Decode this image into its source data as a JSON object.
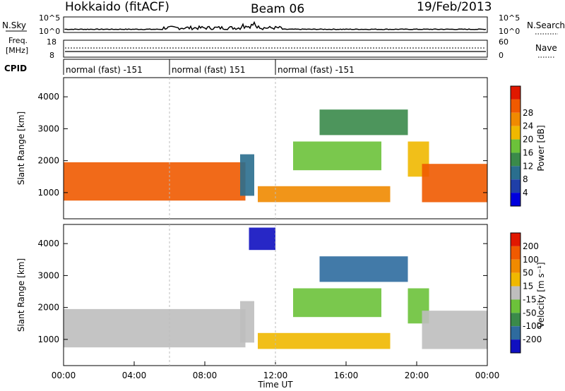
{
  "header": {
    "station": "Hokkaido (fitACF)",
    "beam": "Beam 06",
    "date": "19/Feb/2013"
  },
  "nsky_panel": {
    "label": "N.Sky",
    "right_label": "N.Search",
    "left_ticks": [
      "10^5",
      "10^0"
    ],
    "right_ticks": [
      "10^5",
      "10^0"
    ]
  },
  "freq_panel": {
    "label_line1": "Freq.",
    "label_line2": "[MHz]",
    "left_ticks": [
      "18",
      "8"
    ],
    "right_ticks": [
      "60",
      "0"
    ],
    "right_label": "Nave"
  },
  "cpid_panel": {
    "label": "CPID",
    "segments": [
      {
        "text": "normal (fast) -151",
        "start_hour": 0,
        "end_hour": 6
      },
      {
        "text": "normal (fast) 151",
        "start_hour": 6,
        "end_hour": 12
      },
      {
        "text": "normal (fast) -151",
        "start_hour": 12,
        "end_hour": 24
      }
    ]
  },
  "colors": {
    "power_scale": [
      "#0000dd",
      "#1f3fa8",
      "#2a6e8e",
      "#3a8a4a",
      "#6cc23a",
      "#f0b800",
      "#f08a00",
      "#f05a00",
      "#e01800"
    ],
    "velocity_scale": [
      "#1010c0",
      "#2e6b9e",
      "#3a8a4a",
      "#6cc23a",
      "#bebebe",
      "#f0b800",
      "#f08a00",
      "#f05a00",
      "#e01800"
    ]
  },
  "chart_data": [
    {
      "type": "heatmap",
      "title": "",
      "ylabel": "Slant Range [km]",
      "xlabel": "",
      "xlim": [
        0,
        24
      ],
      "ylim": [
        180,
        4600
      ],
      "yticks": [
        "1000",
        "2000",
        "3000",
        "4000"
      ],
      "ytick_values": [
        1000,
        2000,
        3000,
        4000
      ],
      "colorbar": {
        "label": "Power [dB]",
        "ticks": [
          "4",
          "8",
          "12",
          "16",
          "20",
          "24",
          "28"
        ]
      },
      "regions": [
        {
          "t0": 0,
          "t1": 10.3,
          "r0": 750,
          "r1": 1950,
          "level": 7
        },
        {
          "t0": 10.0,
          "t1": 10.8,
          "r0": 900,
          "r1": 2200,
          "level": 2
        },
        {
          "t0": 11.0,
          "t1": 18.5,
          "r0": 700,
          "r1": 1200,
          "level": 6
        },
        {
          "t0": 13.0,
          "t1": 18.0,
          "r0": 1700,
          "r1": 2600,
          "level": 4
        },
        {
          "t0": 14.5,
          "t1": 19.5,
          "r0": 2800,
          "r1": 3600,
          "level": 3
        },
        {
          "t0": 19.5,
          "t1": 20.7,
          "r0": 1500,
          "r1": 2600,
          "level": 5
        },
        {
          "t0": 20.3,
          "t1": 24,
          "r0": 700,
          "r1": 1900,
          "level": 7
        }
      ]
    },
    {
      "type": "heatmap",
      "title": "",
      "ylabel": "Slant Range [km]",
      "xlabel": "Time UT",
      "xlim": [
        0,
        24
      ],
      "ylim": [
        180,
        4600
      ],
      "yticks": [
        "1000",
        "2000",
        "3000",
        "4000"
      ],
      "ytick_values": [
        1000,
        2000,
        3000,
        4000
      ],
      "xticks": [
        "00:00",
        "04:00",
        "08:00",
        "12:00",
        "16:00",
        "20:00",
        "00:00"
      ],
      "xtick_values": [
        0,
        4,
        8,
        12,
        16,
        20,
        24
      ],
      "colorbar": {
        "label": "Velocity [m s⁻¹]",
        "ticks": [
          "200",
          "100",
          "50",
          "15",
          "-15",
          "-50",
          "-100",
          "-200"
        ]
      },
      "regions": [
        {
          "t0": 0,
          "t1": 10.3,
          "r0": 750,
          "r1": 1950,
          "level": 4
        },
        {
          "t0": 10.0,
          "t1": 10.8,
          "r0": 900,
          "r1": 2200,
          "level": 4
        },
        {
          "t0": 11.0,
          "t1": 18.5,
          "r0": 700,
          "r1": 1200,
          "level": 5
        },
        {
          "t0": 13.0,
          "t1": 18.0,
          "r0": 1700,
          "r1": 2600,
          "level": 3
        },
        {
          "t0": 14.5,
          "t1": 19.5,
          "r0": 2800,
          "r1": 3600,
          "level": 1
        },
        {
          "t0": 19.5,
          "t1": 20.7,
          "r0": 1500,
          "r1": 2600,
          "level": 3
        },
        {
          "t0": 20.3,
          "t1": 24,
          "r0": 700,
          "r1": 1900,
          "level": 4
        },
        {
          "t0": 10.5,
          "t1": 12.0,
          "r0": 3800,
          "r1": 4500,
          "level": 0
        }
      ]
    }
  ]
}
